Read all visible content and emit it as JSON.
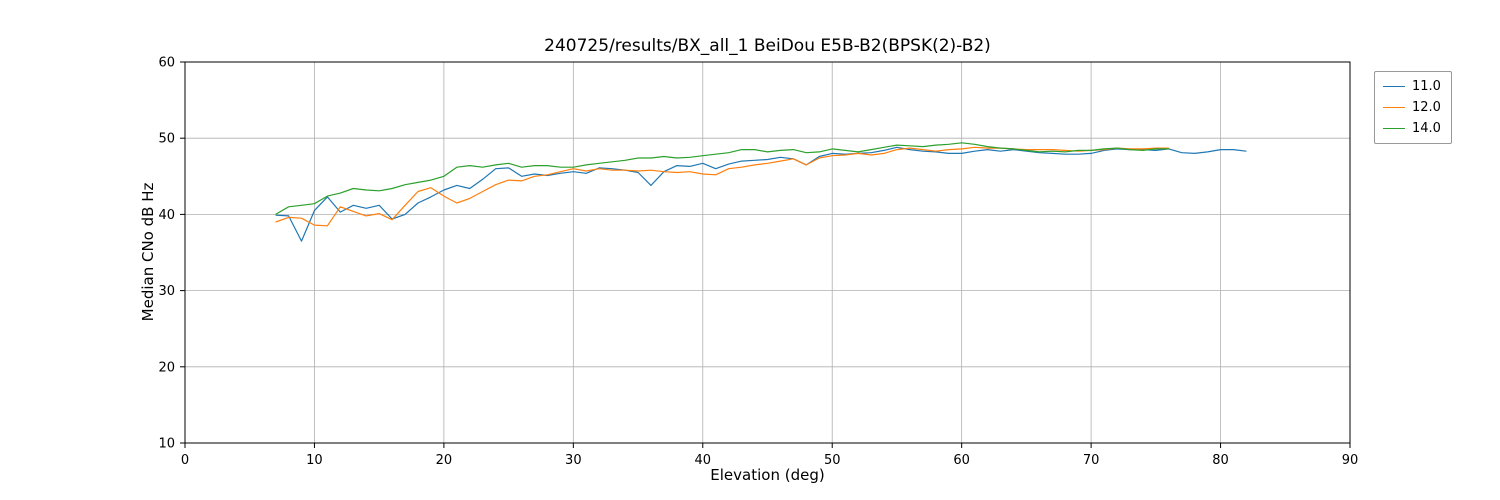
{
  "chart_data": {
    "type": "line",
    "title": "240725/results/BX_all_1 BeiDou E5B-B2(BPSK(2)-B2)",
    "xlabel": "Elevation (deg)",
    "ylabel": "Median CNo dB Hz",
    "xlim": [
      0,
      90
    ],
    "ylim": [
      10,
      60
    ],
    "xticks": [
      0,
      10,
      20,
      30,
      40,
      50,
      60,
      70,
      80,
      90
    ],
    "yticks": [
      10,
      20,
      30,
      40,
      50,
      60
    ],
    "grid": true,
    "grid_color": "#b0b0b0",
    "legend_position": "outside-top-right",
    "series": [
      {
        "name": "11.0",
        "color": "#1f77b4",
        "x": [
          7,
          8,
          9,
          10,
          11,
          12,
          13,
          14,
          15,
          16,
          17,
          18,
          19,
          20,
          21,
          22,
          23,
          24,
          25,
          26,
          27,
          28,
          29,
          30,
          31,
          32,
          33,
          34,
          35,
          36,
          37,
          38,
          39,
          40,
          41,
          42,
          43,
          44,
          45,
          46,
          47,
          48,
          49,
          50,
          51,
          52,
          53,
          54,
          55,
          56,
          57,
          58,
          59,
          60,
          61,
          62,
          63,
          64,
          65,
          66,
          67,
          68,
          69,
          70,
          71,
          72,
          73,
          74,
          75,
          76,
          77,
          78,
          79,
          80,
          81,
          82
        ],
        "y": [
          39.9,
          39.8,
          36.5,
          40.5,
          42.3,
          40.3,
          41.2,
          40.8,
          41.2,
          39.4,
          40.0,
          41.5,
          42.3,
          43.2,
          43.8,
          43.4,
          44.6,
          46.0,
          46.1,
          45.0,
          45.3,
          45.1,
          45.4,
          45.6,
          45.4,
          46.1,
          46.0,
          45.8,
          45.5,
          43.8,
          45.6,
          46.4,
          46.3,
          46.7,
          46.0,
          46.6,
          47.0,
          47.1,
          47.2,
          47.5,
          47.3,
          46.5,
          47.6,
          48.0,
          47.9,
          48.0,
          48.1,
          48.4,
          48.8,
          48.5,
          48.3,
          48.2,
          48.0,
          48.0,
          48.3,
          48.5,
          48.3,
          48.5,
          48.3,
          48.1,
          48.0,
          47.9,
          47.9,
          48.0,
          48.4,
          48.6,
          48.5,
          48.5,
          48.4,
          48.6,
          48.1,
          48.0,
          48.2,
          48.5,
          48.5,
          48.3
        ]
      },
      {
        "name": "12.0",
        "color": "#ff7f0e",
        "x": [
          7,
          8,
          9,
          10,
          11,
          12,
          13,
          14,
          15,
          16,
          17,
          18,
          19,
          20,
          21,
          22,
          23,
          24,
          25,
          26,
          27,
          28,
          29,
          30,
          31,
          32,
          33,
          34,
          35,
          36,
          37,
          38,
          39,
          40,
          41,
          42,
          43,
          44,
          45,
          46,
          47,
          48,
          49,
          50,
          51,
          52,
          53,
          54,
          55,
          56,
          57,
          58,
          59,
          60,
          61,
          62,
          63,
          64,
          65,
          66,
          67,
          68,
          69,
          70,
          71,
          72,
          73,
          74,
          75,
          76
        ],
        "y": [
          39.0,
          39.6,
          39.5,
          38.6,
          38.5,
          41.0,
          40.4,
          39.8,
          40.1,
          39.3,
          41.2,
          43.0,
          43.5,
          42.4,
          41.5,
          42.1,
          43.0,
          43.9,
          44.5,
          44.4,
          45.0,
          45.2,
          45.6,
          46.0,
          45.7,
          46.0,
          45.8,
          45.8,
          45.7,
          45.8,
          45.6,
          45.5,
          45.6,
          45.3,
          45.2,
          46.0,
          46.2,
          46.5,
          46.7,
          47.0,
          47.3,
          46.5,
          47.4,
          47.7,
          47.8,
          48.0,
          47.8,
          48.0,
          48.5,
          48.7,
          48.5,
          48.3,
          48.5,
          48.6,
          48.8,
          48.7,
          48.7,
          48.6,
          48.5,
          48.5,
          48.5,
          48.4,
          48.3,
          48.4,
          48.5,
          48.7,
          48.6,
          48.6,
          48.7,
          48.7
        ]
      },
      {
        "name": "14.0",
        "color": "#2ca02c",
        "x": [
          7,
          8,
          9,
          10,
          11,
          12,
          13,
          14,
          15,
          16,
          17,
          18,
          19,
          20,
          21,
          22,
          23,
          24,
          25,
          26,
          27,
          28,
          29,
          30,
          31,
          32,
          33,
          34,
          35,
          36,
          37,
          38,
          39,
          40,
          41,
          42,
          43,
          44,
          45,
          46,
          47,
          48,
          49,
          50,
          51,
          52,
          53,
          54,
          55,
          56,
          57,
          58,
          59,
          60,
          61,
          62,
          63,
          64,
          65,
          66,
          67,
          68,
          69,
          70,
          71,
          72,
          73,
          74,
          75,
          76
        ],
        "y": [
          40.0,
          41.0,
          41.2,
          41.4,
          42.4,
          42.8,
          43.4,
          43.2,
          43.1,
          43.4,
          43.9,
          44.2,
          44.5,
          45.0,
          46.2,
          46.4,
          46.2,
          46.5,
          46.7,
          46.2,
          46.4,
          46.4,
          46.2,
          46.2,
          46.5,
          46.7,
          46.9,
          47.1,
          47.4,
          47.4,
          47.6,
          47.4,
          47.5,
          47.7,
          47.9,
          48.1,
          48.5,
          48.5,
          48.2,
          48.4,
          48.5,
          48.1,
          48.2,
          48.6,
          48.4,
          48.2,
          48.5,
          48.8,
          49.1,
          49.0,
          48.9,
          49.1,
          49.2,
          49.4,
          49.2,
          48.9,
          48.7,
          48.6,
          48.4,
          48.2,
          48.3,
          48.2,
          48.4,
          48.4,
          48.6,
          48.7,
          48.5,
          48.4,
          48.6,
          48.6
        ]
      }
    ]
  }
}
